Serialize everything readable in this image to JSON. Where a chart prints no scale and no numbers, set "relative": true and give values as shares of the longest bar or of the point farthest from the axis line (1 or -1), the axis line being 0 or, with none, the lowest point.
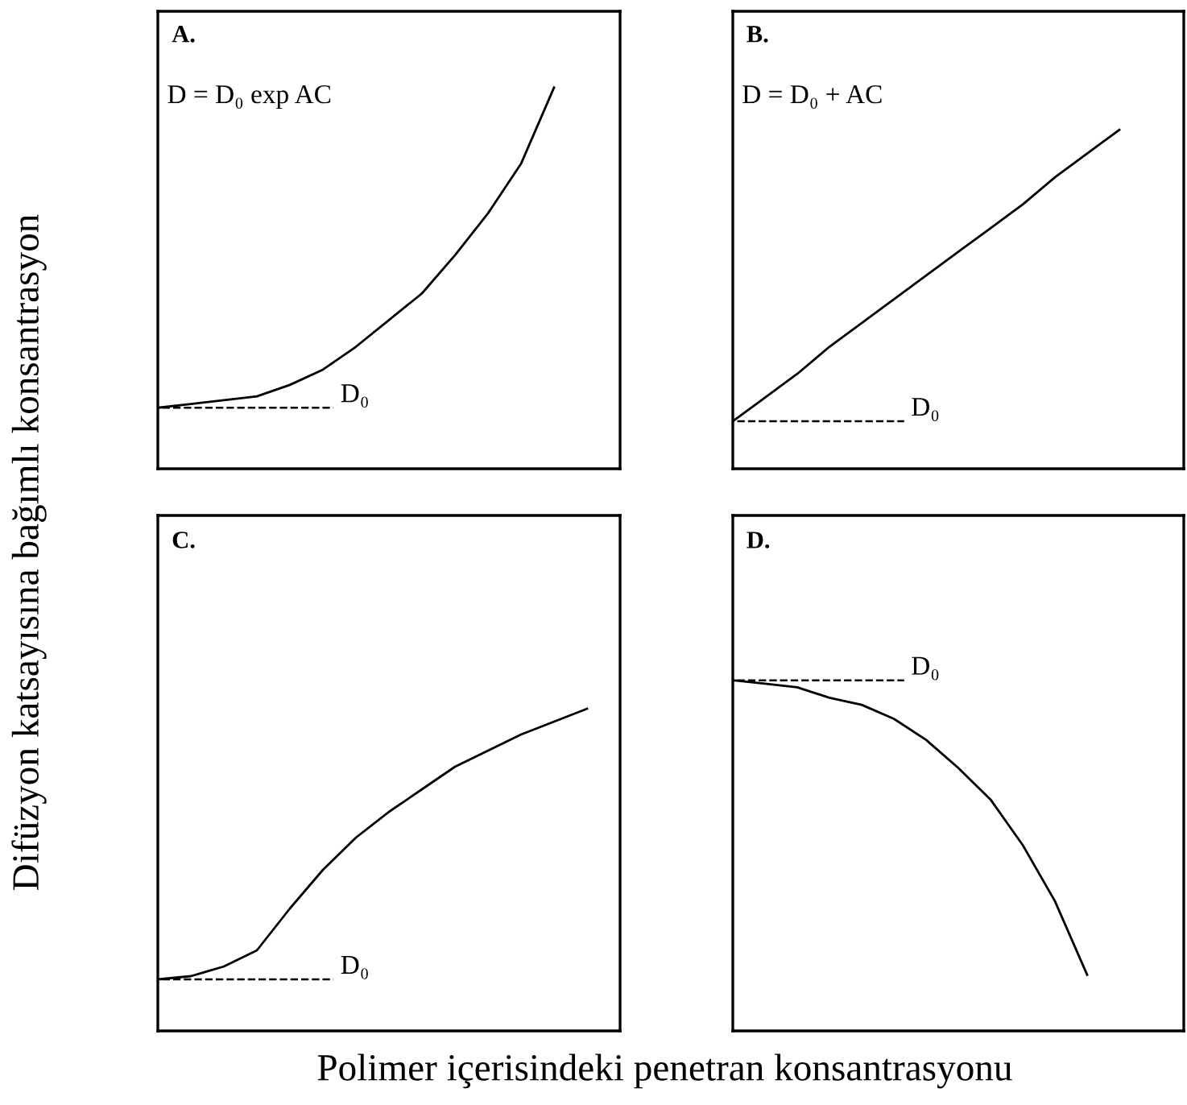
{
  "chart_data": [
    {
      "type": "line",
      "title": "A.",
      "relative": true,
      "ylabel": "Difüzyon katsayısına bağımlı konsantrasyon",
      "annotations": [
        "D = D₀ exp AC"
      ],
      "categories": [
        null,
        null,
        null,
        null,
        null,
        null,
        null,
        null,
        null,
        null,
        null,
        null,
        null,
        null,
        null
      ],
      "series": [
        {
          "color": "#000000",
          "values": [
            0.16,
            0.17,
            0.18,
            0.19,
            0.22,
            0.26,
            0.32,
            0.39,
            0.46,
            0.56,
            0.67,
            0.8,
            1.0,
            null,
            null
          ]
        }
      ],
      "ref_lines": [
        {
          "axis": "y",
          "value": 0.16,
          "label": "D₀",
          "line_style": "dashed",
          "color": "#000000"
        }
      ],
      "tick_labels": false
    },
    {
      "type": "line",
      "title": "B.",
      "relative": true,
      "annotations": [
        "D = D₀ + AC"
      ],
      "categories": [
        null,
        null,
        null,
        null,
        null,
        null,
        null,
        null,
        null,
        null,
        null,
        null,
        null,
        null,
        null
      ],
      "series": [
        {
          "color": "#000000",
          "values": [
            0.14,
            0.21,
            0.28,
            0.36,
            0.43,
            0.5,
            0.57,
            0.64,
            0.71,
            0.78,
            0.86,
            0.93,
            1.0,
            null,
            null
          ]
        }
      ],
      "ref_lines": [
        {
          "axis": "y",
          "value": 0.14,
          "label": "D₀",
          "line_style": "dashed",
          "color": "#000000"
        }
      ],
      "tick_labels": false
    },
    {
      "type": "line",
      "title": "C.",
      "relative": true,
      "xlabel": "Polimer içerisindeki penetran konsantrasyonu",
      "categories": [
        null,
        null,
        null,
        null,
        null,
        null,
        null,
        null,
        null,
        null,
        null,
        null,
        null,
        null,
        null
      ],
      "series": [
        {
          "color": "#000000",
          "values": [
            0.16,
            0.17,
            0.2,
            0.25,
            0.38,
            0.5,
            0.6,
            0.68,
            0.75,
            0.82,
            0.87,
            0.92,
            0.96,
            1.0,
            null
          ]
        }
      ],
      "ref_lines": [
        {
          "axis": "y",
          "value": 0.16,
          "label": "D₀",
          "line_style": "dashed",
          "color": "#000000"
        }
      ],
      "tick_labels": false
    },
    {
      "type": "line",
      "title": "D.",
      "relative": true,
      "categories": [
        null,
        null,
        null,
        null,
        null,
        null,
        null,
        null,
        null,
        null,
        null,
        null,
        null,
        null,
        null
      ],
      "series": [
        {
          "color": "#000000",
          "values": [
            1.0,
            0.99,
            0.98,
            0.95,
            0.93,
            0.89,
            0.83,
            0.75,
            0.66,
            0.53,
            0.37,
            0.16,
            null,
            null,
            null
          ]
        }
      ],
      "ref_lines": [
        {
          "axis": "y",
          "value": 1.0,
          "label": "D₀",
          "line_style": "dashed",
          "color": "#000000"
        }
      ],
      "tick_labels": false
    }
  ]
}
